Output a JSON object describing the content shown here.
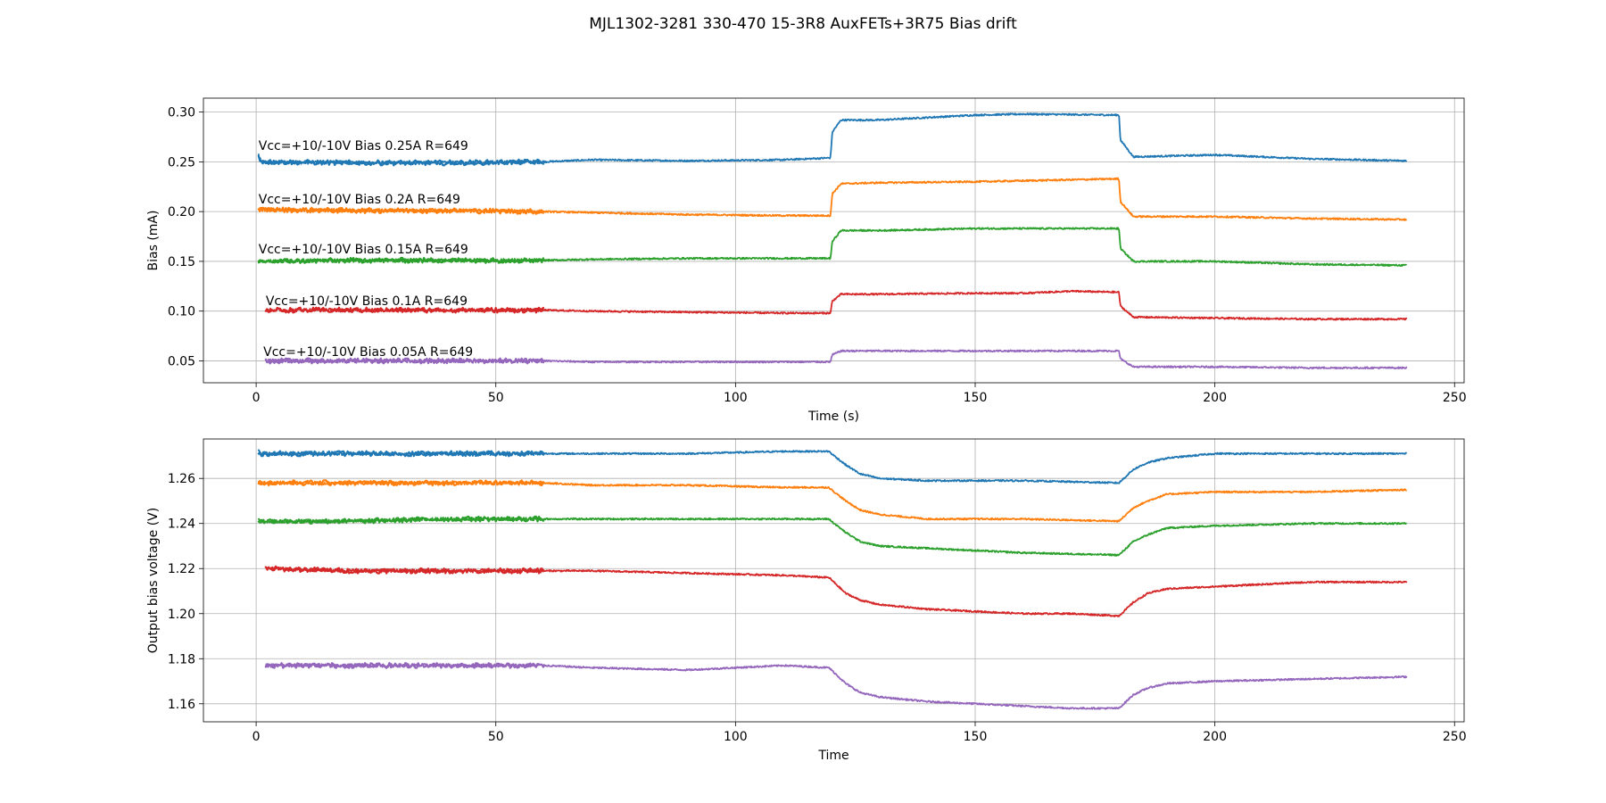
{
  "title": "MJL1302-3281 330-470 15-3R8 AuxFETs+3R75 Bias drift",
  "colors": [
    "#1f77b4",
    "#ff7f0e",
    "#2ca02c",
    "#d62728",
    "#9467bd"
  ],
  "chart_data": [
    {
      "type": "line",
      "xlabel": "Time (s)",
      "ylabel": "Bias (mA)",
      "xlim": [
        -11,
        252
      ],
      "ylim": [
        0.028,
        0.314
      ],
      "xticks": [
        0,
        50,
        100,
        150,
        200,
        250
      ],
      "yticks": [
        0.05,
        0.1,
        0.15,
        0.2,
        0.25,
        0.3
      ],
      "ytick_labels": [
        "0.05",
        "0.10",
        "0.15",
        "0.20",
        "0.25",
        "0.30"
      ],
      "grid": true,
      "annotations": [
        {
          "text": "Vcc=+10/-10V Bias 0.25A R=649",
          "x": 0.5,
          "y": 0.262
        },
        {
          "text": "Vcc=+10/-10V Bias 0.2A R=649",
          "x": 0.5,
          "y": 0.208
        },
        {
          "text": "Vcc=+10/-10V Bias 0.15A R=649",
          "x": 0.5,
          "y": 0.158
        },
        {
          "text": "Vcc=+10/-10V Bias 0.1A R=649",
          "x": 2,
          "y": 0.106
        },
        {
          "text": "Vcc=+10/-10V Bias 0.05A R=649",
          "x": 1.5,
          "y": 0.055
        }
      ],
      "series": [
        {
          "x": [
            0.5,
            1,
            20,
            40,
            60,
            70,
            90,
            110,
            119.8,
            120.2,
            122,
            130,
            150,
            160,
            180,
            180.3,
            183,
            200,
            220,
            240
          ],
          "y": [
            0.257,
            0.25,
            0.249,
            0.249,
            0.25,
            0.252,
            0.251,
            0.252,
            0.254,
            0.28,
            0.292,
            0.292,
            0.297,
            0.298,
            0.297,
            0.272,
            0.255,
            0.257,
            0.253,
            0.251
          ]
        },
        {
          "x": [
            0.5,
            1,
            20,
            40,
            60,
            70,
            90,
            110,
            119.8,
            120.2,
            122,
            130,
            150,
            160,
            180,
            180.3,
            183,
            200,
            220,
            240
          ],
          "y": [
            0.201,
            0.202,
            0.201,
            0.201,
            0.2,
            0.199,
            0.197,
            0.196,
            0.196,
            0.218,
            0.228,
            0.229,
            0.23,
            0.231,
            0.233,
            0.21,
            0.195,
            0.195,
            0.193,
            0.192
          ]
        },
        {
          "x": [
            0.5,
            1,
            20,
            40,
            60,
            70,
            90,
            110,
            119.8,
            120.2,
            122,
            130,
            150,
            160,
            180,
            180.3,
            183,
            200,
            220,
            240
          ],
          "y": [
            0.15,
            0.15,
            0.151,
            0.151,
            0.151,
            0.152,
            0.153,
            0.153,
            0.153,
            0.17,
            0.181,
            0.181,
            0.183,
            0.183,
            0.183,
            0.163,
            0.15,
            0.15,
            0.147,
            0.146
          ]
        },
        {
          "x": [
            2,
            20,
            40,
            60,
            70,
            90,
            110,
            119.8,
            120.2,
            122,
            130,
            150,
            160,
            170,
            180,
            180.3,
            183,
            200,
            220,
            240
          ],
          "y": [
            0.101,
            0.101,
            0.101,
            0.101,
            0.1,
            0.099,
            0.098,
            0.098,
            0.11,
            0.117,
            0.117,
            0.118,
            0.118,
            0.12,
            0.119,
            0.105,
            0.094,
            0.093,
            0.092,
            0.092
          ]
        },
        {
          "x": [
            2,
            20,
            40,
            60,
            70,
            90,
            110,
            119.8,
            120.2,
            122,
            130,
            150,
            160,
            180,
            180.3,
            183,
            200,
            220,
            240
          ],
          "y": [
            0.05,
            0.05,
            0.05,
            0.05,
            0.049,
            0.049,
            0.049,
            0.049,
            0.056,
            0.06,
            0.06,
            0.06,
            0.06,
            0.06,
            0.052,
            0.044,
            0.044,
            0.043,
            0.043
          ]
        }
      ]
    },
    {
      "type": "line",
      "xlabel": "Time",
      "ylabel": "Output bias voltage (V)",
      "xlim": [
        -11,
        252
      ],
      "ylim": [
        1.152,
        1.2775
      ],
      "xticks": [
        0,
        50,
        100,
        150,
        200,
        250
      ],
      "yticks": [
        1.16,
        1.18,
        1.2,
        1.22,
        1.24,
        1.26
      ],
      "ytick_labels": [
        "1.16",
        "1.18",
        "1.20",
        "1.22",
        "1.24",
        "1.26"
      ],
      "grid": true,
      "series": [
        {
          "x": [
            0.5,
            1,
            20,
            40,
            60,
            70,
            90,
            110,
            119.5,
            120,
            123,
            126,
            130,
            140,
            150,
            160,
            180,
            180.5,
            183,
            186,
            190,
            200,
            220,
            240
          ],
          "y": [
            1.272,
            1.271,
            1.271,
            1.271,
            1.271,
            1.271,
            1.271,
            1.272,
            1.272,
            1.271,
            1.266,
            1.262,
            1.26,
            1.259,
            1.259,
            1.259,
            1.258,
            1.259,
            1.264,
            1.267,
            1.269,
            1.271,
            1.271,
            1.271
          ]
        },
        {
          "x": [
            0.5,
            1,
            20,
            40,
            60,
            70,
            90,
            110,
            119.5,
            120,
            123,
            126,
            130,
            140,
            150,
            160,
            180,
            180.5,
            183,
            186,
            190,
            200,
            220,
            240
          ],
          "y": [
            1.258,
            1.258,
            1.258,
            1.258,
            1.258,
            1.257,
            1.257,
            1.256,
            1.256,
            1.255,
            1.25,
            1.246,
            1.244,
            1.242,
            1.242,
            1.242,
            1.241,
            1.242,
            1.247,
            1.25,
            1.253,
            1.254,
            1.254,
            1.255
          ]
        },
        {
          "x": [
            0.5,
            1,
            20,
            40,
            60,
            70,
            90,
            110,
            119.5,
            120,
            123,
            126,
            130,
            140,
            150,
            160,
            180,
            180.5,
            183,
            186,
            190,
            200,
            220,
            240
          ],
          "y": [
            1.242,
            1.241,
            1.241,
            1.242,
            1.242,
            1.242,
            1.242,
            1.242,
            1.242,
            1.241,
            1.236,
            1.232,
            1.23,
            1.229,
            1.228,
            1.227,
            1.226,
            1.227,
            1.232,
            1.235,
            1.238,
            1.239,
            1.24,
            1.24
          ]
        },
        {
          "x": [
            2,
            20,
            40,
            60,
            70,
            90,
            110,
            119.5,
            120,
            123,
            126,
            130,
            140,
            150,
            160,
            170,
            180,
            180.5,
            183,
            186,
            190,
            200,
            220,
            240
          ],
          "y": [
            1.22,
            1.219,
            1.219,
            1.219,
            1.219,
            1.218,
            1.217,
            1.216,
            1.215,
            1.209,
            1.206,
            1.204,
            1.202,
            1.201,
            1.2,
            1.2,
            1.199,
            1.2,
            1.205,
            1.209,
            1.211,
            1.212,
            1.214,
            1.214
          ]
        },
        {
          "x": [
            2,
            20,
            40,
            60,
            70,
            90,
            100,
            110,
            119.5,
            120,
            123,
            126,
            130,
            140,
            150,
            160,
            170,
            180,
            180.5,
            183,
            186,
            190,
            200,
            220,
            240
          ],
          "y": [
            1.177,
            1.177,
            1.177,
            1.177,
            1.176,
            1.175,
            1.176,
            1.177,
            1.176,
            1.175,
            1.169,
            1.165,
            1.163,
            1.161,
            1.16,
            1.159,
            1.158,
            1.158,
            1.159,
            1.164,
            1.167,
            1.169,
            1.17,
            1.171,
            1.172
          ]
        }
      ]
    }
  ]
}
